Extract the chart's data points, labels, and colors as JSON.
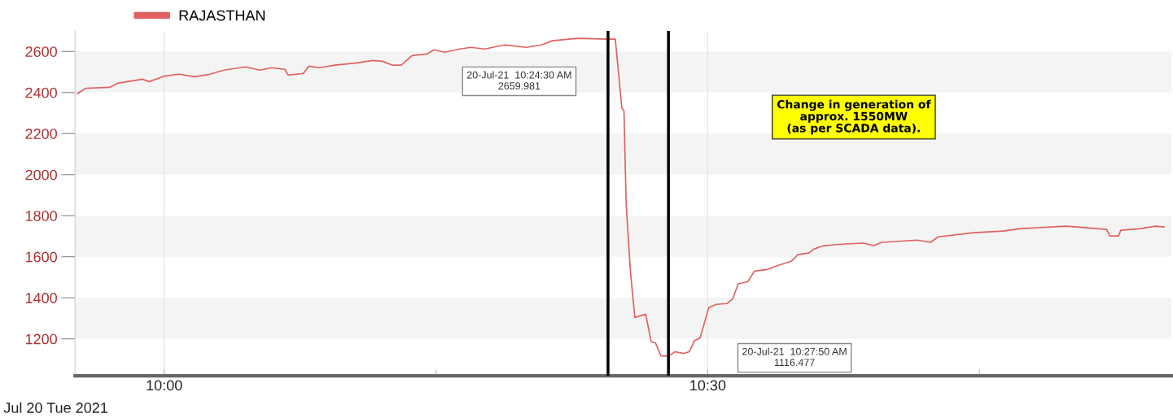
{
  "chart_data": {
    "type": "line",
    "legend": "top left",
    "grid": true,
    "marker": "none",
    "line_style": "solid",
    "xlim": [
      9.918,
      10.927
    ],
    "xticks": [
      {
        "value": 10,
        "label": "10:00"
      },
      {
        "value": 10.25,
        "label": null
      },
      {
        "value": 10.5,
        "label": "10:30"
      },
      {
        "value": 10.75,
        "label": null
      }
    ],
    "ylim": [
      1020,
      2700
    ],
    "yticks": [
      1200,
      1400,
      1600,
      1800,
      2000,
      2200,
      2400,
      2600
    ],
    "series": [
      {
        "name": "RAJASTHAN",
        "color": "#e06060",
        "x": [
          9.92,
          9.928,
          9.95,
          9.957,
          9.98,
          9.986,
          10.001,
          10.014,
          10.028,
          10.042,
          10.055,
          10.065,
          10.075,
          10.088,
          10.099,
          10.111,
          10.114,
          10.128,
          10.133,
          10.143,
          10.157,
          10.177,
          10.192,
          10.201,
          10.21,
          10.218,
          10.228,
          10.242,
          10.248,
          10.258,
          10.272,
          10.282,
          10.295,
          10.313,
          10.333,
          10.347,
          10.357,
          10.38,
          10.408,
          10.415,
          10.421,
          10.423,
          10.425,
          10.429,
          10.433,
          10.443,
          10.448,
          10.452,
          10.457,
          10.464,
          10.47,
          10.478,
          10.483,
          10.488,
          10.493,
          10.501,
          10.508,
          10.518,
          10.523,
          10.528,
          10.537,
          10.543,
          10.555,
          10.565,
          10.577,
          10.583,
          10.593,
          10.598,
          10.607,
          10.627,
          10.643,
          10.653,
          10.66,
          10.693,
          10.705,
          10.712,
          10.745,
          10.772,
          10.788,
          10.83,
          10.84,
          10.867,
          10.87,
          10.878,
          10.88,
          10.898,
          10.912,
          10.92
        ],
        "values": [
          2395,
          2421,
          2425,
          2445,
          2465,
          2453,
          2481,
          2489,
          2477,
          2489,
          2509,
          2517,
          2525,
          2509,
          2521,
          2513,
          2485,
          2493,
          2528,
          2521,
          2533,
          2544,
          2556,
          2552,
          2533,
          2533,
          2580,
          2588,
          2608,
          2596,
          2612,
          2620,
          2612,
          2632,
          2620,
          2632,
          2652,
          2664,
          2660,
          2660,
          2326,
          2310,
          1856,
          1522,
          1304,
          1320,
          1185,
          1180,
          1117,
          1116,
          1137,
          1129,
          1137,
          1192,
          1204,
          1352,
          1368,
          1372,
          1395,
          1467,
          1479,
          1530,
          1538,
          1558,
          1578,
          1610,
          1618,
          1638,
          1654,
          1662,
          1666,
          1654,
          1670,
          1681,
          1670,
          1697,
          1717,
          1725,
          1737,
          1749,
          1745,
          1733,
          1701,
          1701,
          1729,
          1737,
          1749,
          1745
        ]
      }
    ],
    "ref_lines": [
      {
        "axis": "x",
        "value": 10.4083,
        "label": null,
        "color": "#000000"
      },
      {
        "axis": "x",
        "value": 10.4639,
        "label": null,
        "color": "#000000"
      }
    ],
    "annotations": [
      "20-Jul-21  10:24:30 AM\n2659.981",
      "20-Jul-21  10:27:50 AM\n1116.477",
      "Change in generation of\napprox. 1550MW\n(as per SCADA data).",
      "Jul 20 Tue 2021"
    ]
  }
}
